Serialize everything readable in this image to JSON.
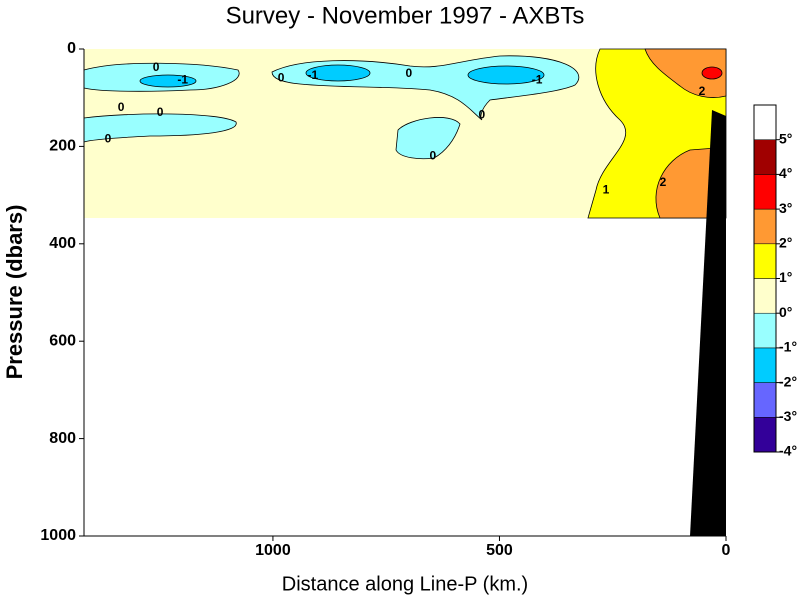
{
  "chart_data": {
    "type": "contour",
    "title": "Survey - November 1997 - AXBTs",
    "x_label": "Distance along Line-P (km.)",
    "y_label": "Pressure (dbars)",
    "xlim": [
      1417,
      0
    ],
    "xticks": [
      1000,
      500,
      0
    ],
    "ylim": [
      0,
      1000
    ],
    "yticks": [
      0,
      200,
      400,
      600,
      800,
      1000
    ],
    "colorbar": {
      "levels": [
        {
          "value": -4,
          "label": "-4°"
        },
        {
          "value": -3,
          "label": "-3°"
        },
        {
          "value": -2,
          "label": "-2°"
        },
        {
          "value": -1,
          "label": "-1°"
        },
        {
          "value": 0,
          "label": "0°"
        },
        {
          "value": 1,
          "label": "1°"
        },
        {
          "value": 2,
          "label": "2°"
        },
        {
          "value": 3,
          "label": "3°"
        },
        {
          "value": 4,
          "label": "4°"
        },
        {
          "value": 5,
          "label": "5°"
        }
      ],
      "colors": [
        "#330099",
        "#6666ff",
        "#00ccff",
        "#99ffff",
        "#ffffcc",
        "#ffff00",
        "#ff9933",
        "#ff0000",
        "#a00000",
        "#ffffff"
      ]
    },
    "contour_labels": [
      {
        "text": "0",
        "x": 1258,
        "y": 39
      },
      {
        "text": "-1",
        "x": 1199,
        "y": 64
      },
      {
        "text": "0",
        "x": 1335,
        "y": 121
      },
      {
        "text": "0",
        "x": 1249,
        "y": 131
      },
      {
        "text": "0",
        "x": 1364,
        "y": 185
      },
      {
        "text": "0",
        "x": 982,
        "y": 60
      },
      {
        "text": "-1",
        "x": 912,
        "y": 55
      },
      {
        "text": "0",
        "x": 700,
        "y": 51
      },
      {
        "text": "-1",
        "x": 417,
        "y": 64
      },
      {
        "text": "0",
        "x": 539,
        "y": 136
      },
      {
        "text": "0",
        "x": 647,
        "y": 220
      },
      {
        "text": "2",
        "x": 53,
        "y": 88
      },
      {
        "text": "1",
        "x": 265,
        "y": 290
      },
      {
        "text": "2",
        "x": 139,
        "y": 275
      }
    ]
  }
}
